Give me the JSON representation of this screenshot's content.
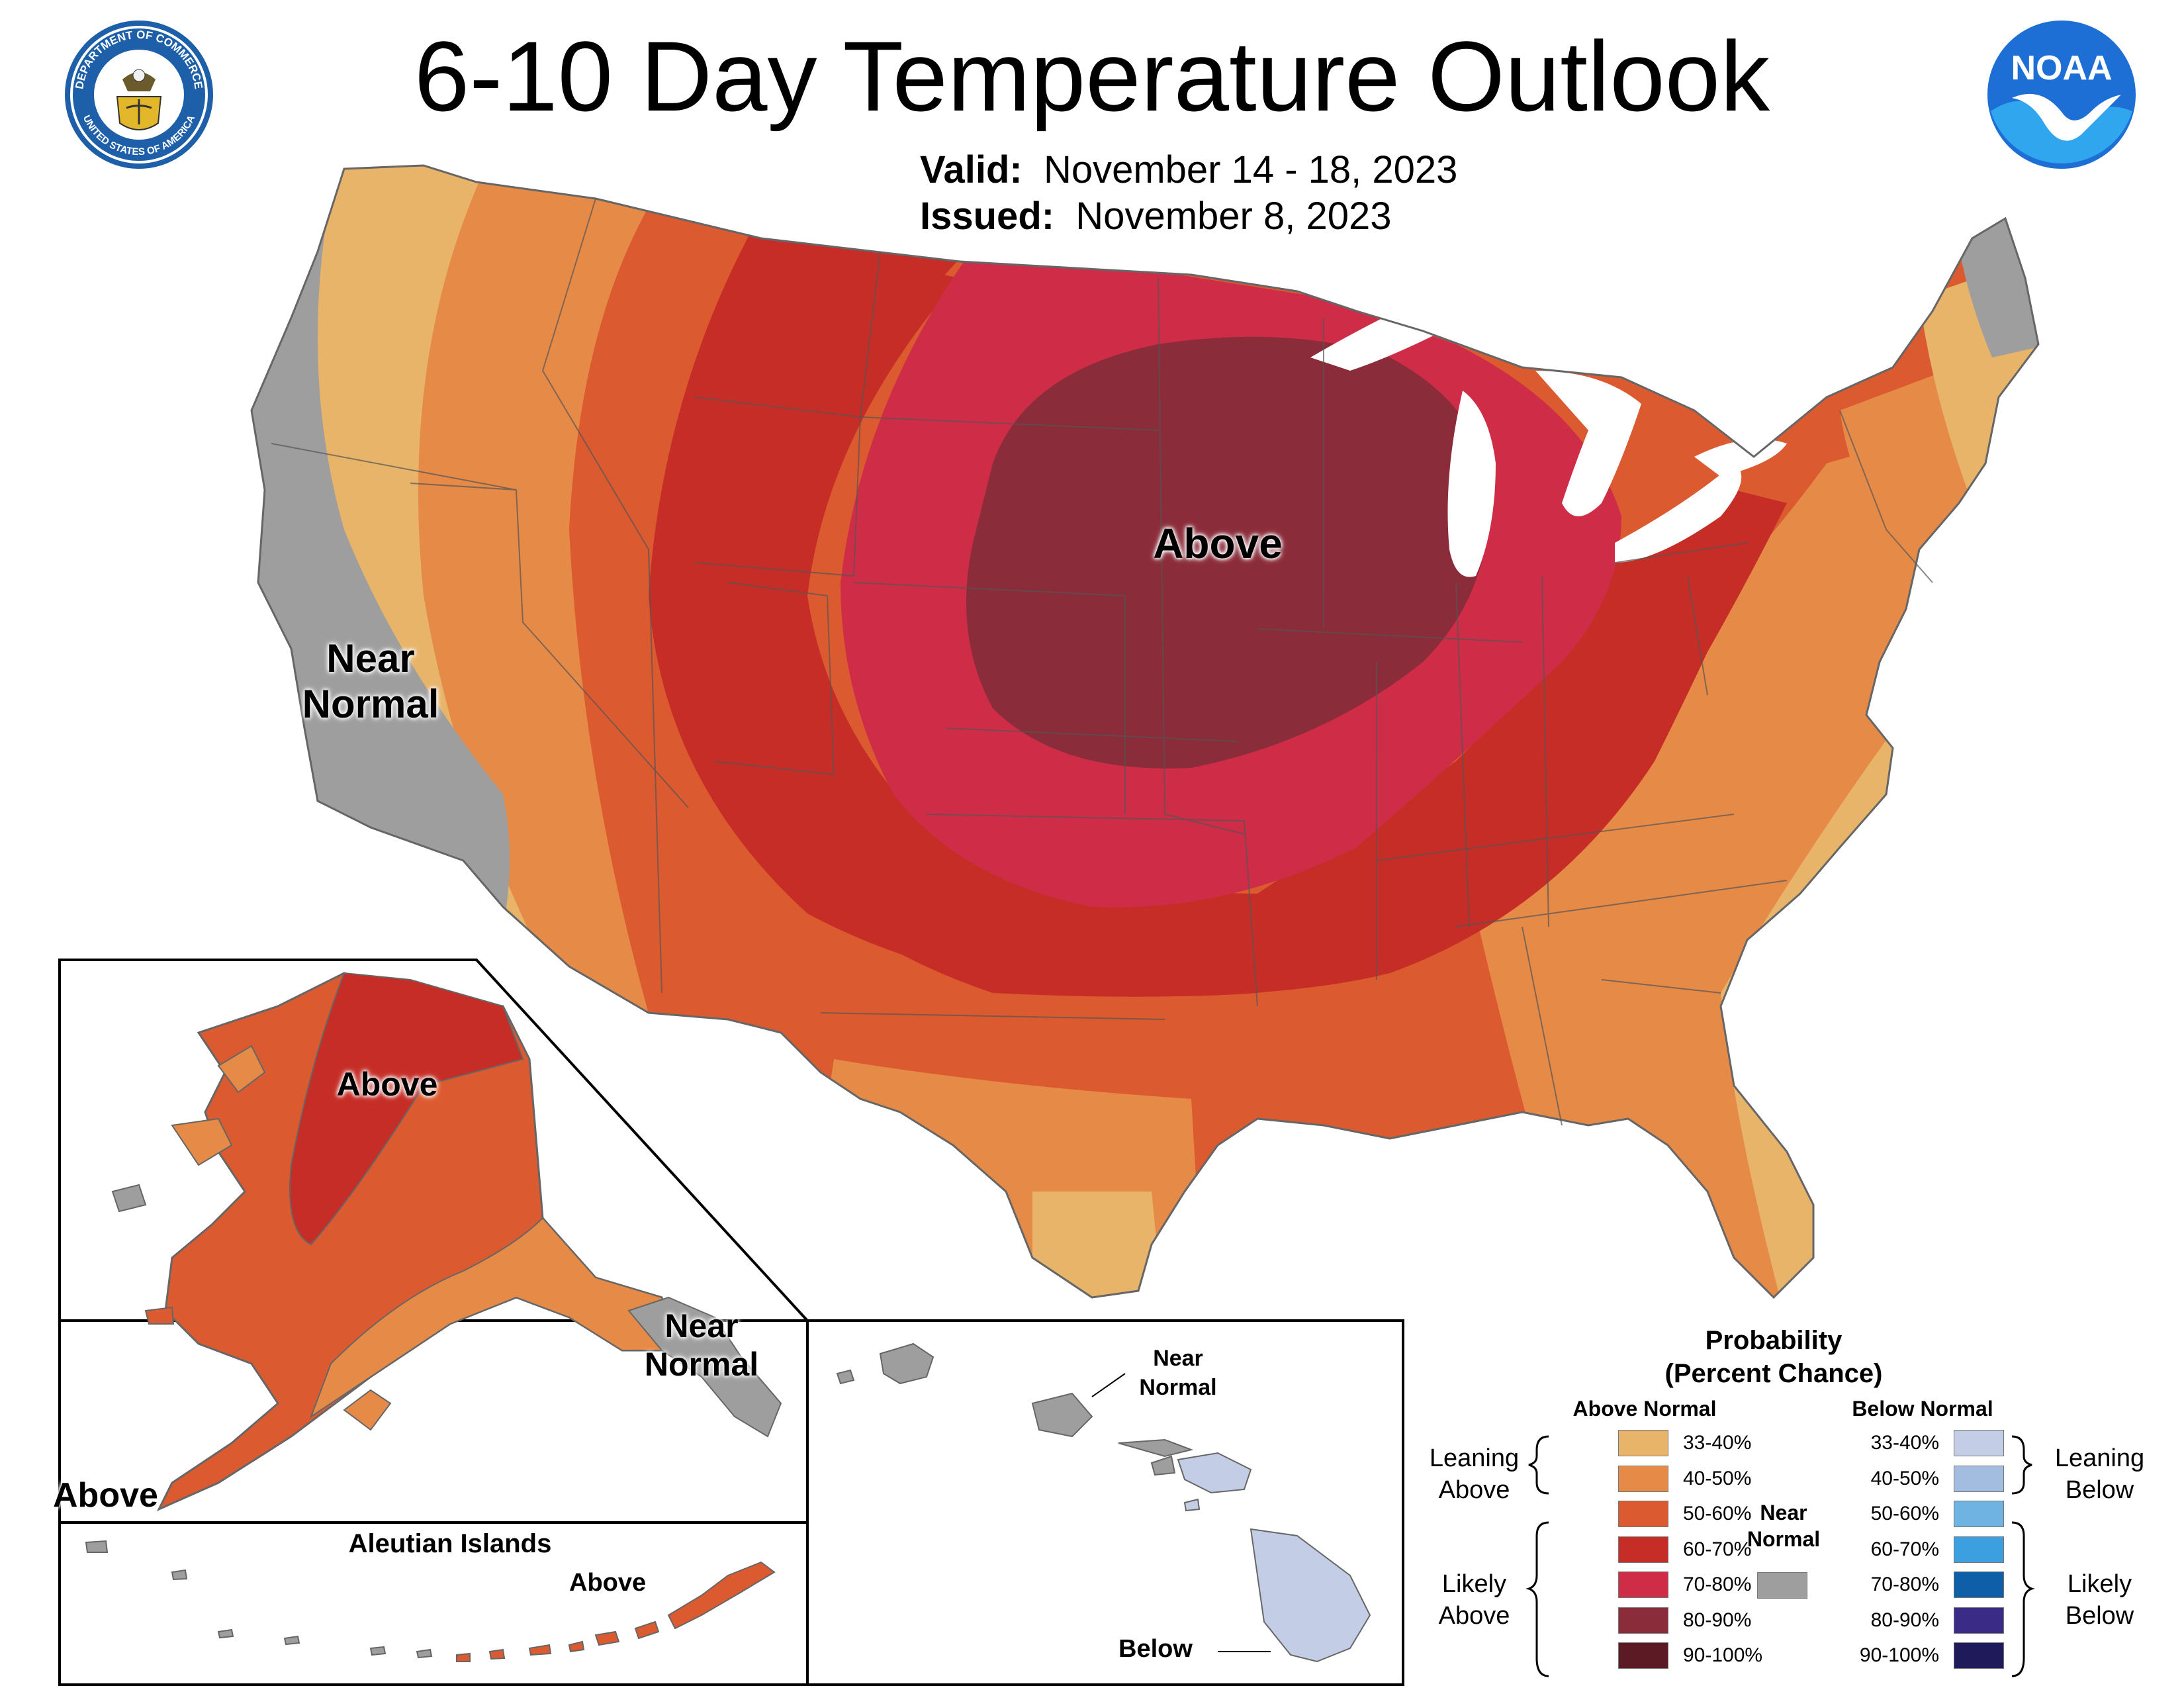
{
  "header": {
    "title": "6-10 Day Temperature Outlook",
    "valid_label": "Valid:",
    "valid_value": "November 14 - 18, 2023",
    "issued_label": "Issued:",
    "issued_value": "November 8, 2023"
  },
  "logos": {
    "commerce_seal_text_top": "DEPARTMENT OF COMMERCE",
    "commerce_seal_text_bottom": "UNITED STATES OF AMERICA",
    "noaa_text": "NOAA"
  },
  "map_labels": {
    "conus_above": "Above",
    "conus_near_normal_1": "Near",
    "conus_near_normal_2": "Normal",
    "alaska_above_north": "Above",
    "alaska_near_normal_1": "Near",
    "alaska_near_normal_2": "Normal",
    "alaska_above_south": "Above",
    "aleutian_title": "Aleutian Islands",
    "aleutian_above": "Above",
    "hawaii_near_normal_1": "Near",
    "hawaii_near_normal_2": "Normal",
    "hawaii_below": "Below"
  },
  "legend": {
    "title_1": "Probability",
    "title_2": "(Percent Chance)",
    "above_header": "Above Normal",
    "below_header": "Below Normal",
    "near_header_1": "Near",
    "near_header_2": "Normal",
    "leaning_above_1": "Leaning",
    "leaning_above_2": "Above",
    "likely_above_1": "Likely",
    "likely_above_2": "Above",
    "leaning_below_1": "Leaning",
    "leaning_below_2": "Below",
    "likely_below_1": "Likely",
    "likely_below_2": "Below",
    "above_rows": [
      {
        "label": "33-40%",
        "color": "#e8b46a"
      },
      {
        "label": "40-50%",
        "color": "#e68a48"
      },
      {
        "label": "50-60%",
        "color": "#dc5a30"
      },
      {
        "label": "60-70%",
        "color": "#c62d26"
      },
      {
        "label": "70-80%",
        "color": "#cf2c47"
      },
      {
        "label": "80-90%",
        "color": "#8b2c3a"
      },
      {
        "label": "90-100%",
        "color": "#5c1a24"
      }
    ],
    "below_rows": [
      {
        "label": "33-40%",
        "color": "#c3cde6"
      },
      {
        "label": "40-50%",
        "color": "#a2bde0"
      },
      {
        "label": "50-60%",
        "color": "#6fb3e2"
      },
      {
        "label": "60-70%",
        "color": "#3b9fe0"
      },
      {
        "label": "70-80%",
        "color": "#0e5ea8"
      },
      {
        "label": "80-90%",
        "color": "#3a2b86"
      },
      {
        "label": "90-100%",
        "color": "#1f1a5a"
      }
    ],
    "near_color": "#9e9e9e"
  }
}
